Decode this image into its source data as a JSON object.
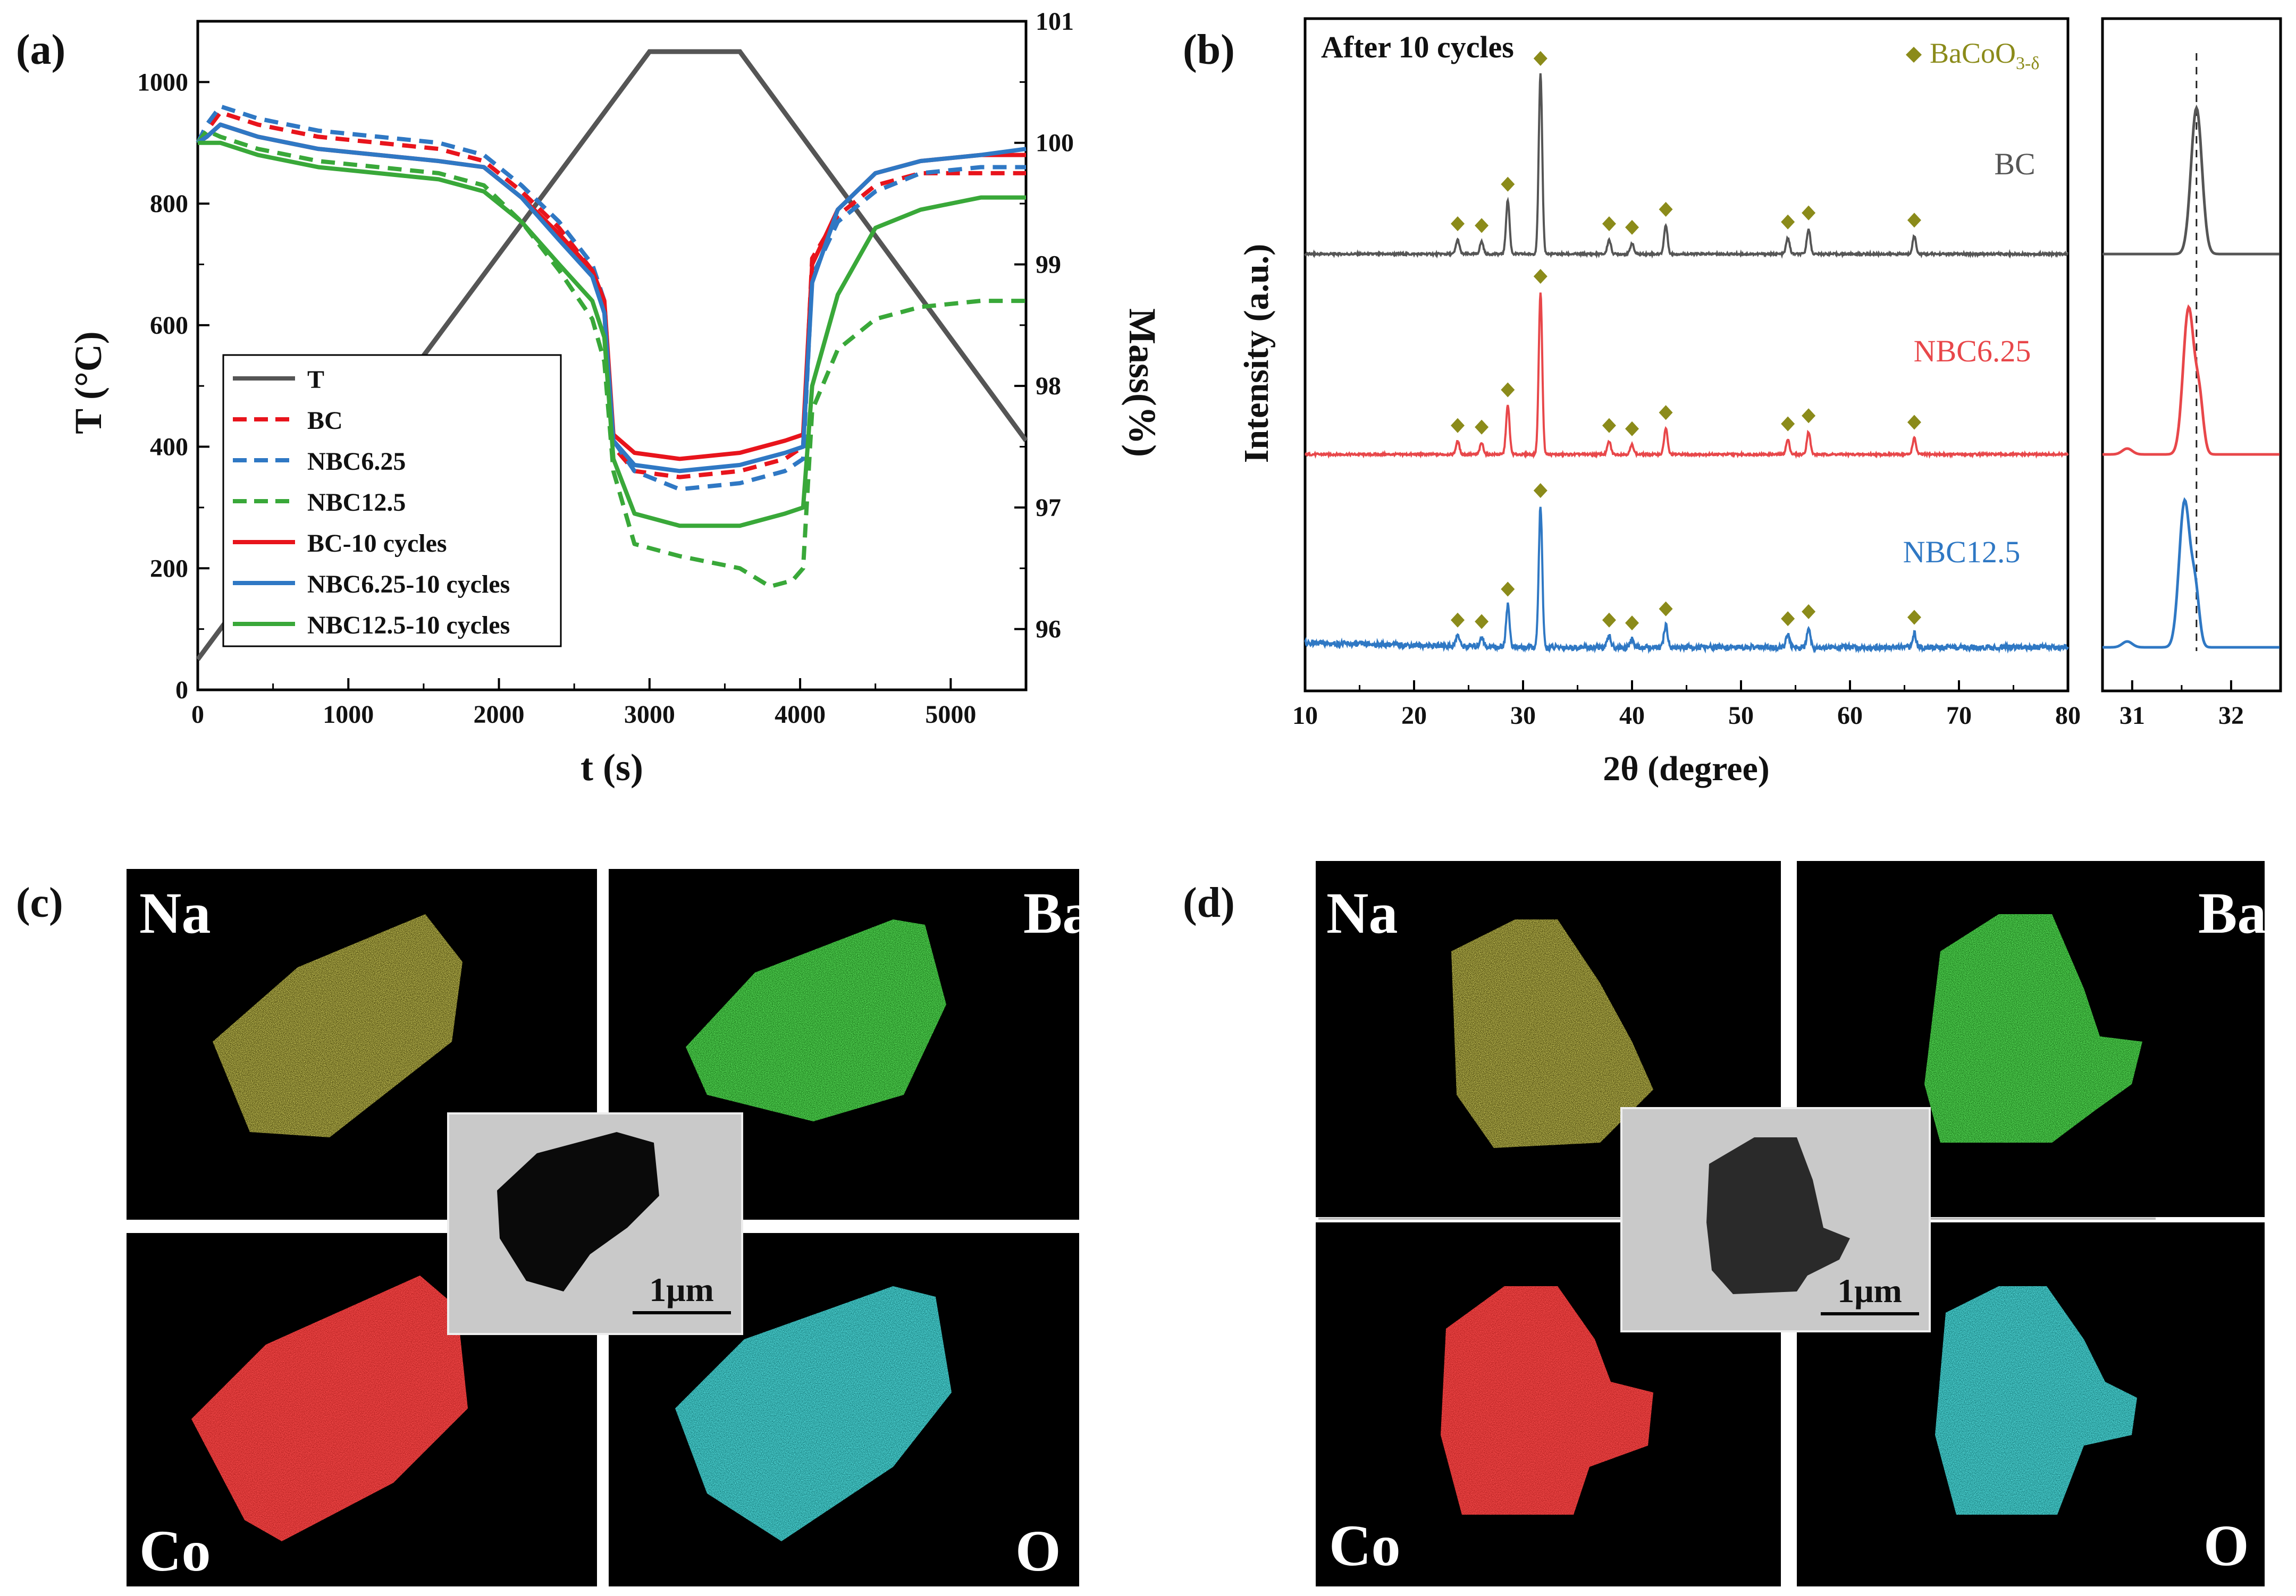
{
  "panel_labels": {
    "a": "(a)",
    "b": "(b)",
    "c": "(c)",
    "d": "(d)"
  },
  "chart_data": [
    {
      "type": "line",
      "panel": "a",
      "xlabel": "t (s)",
      "ylabel_left": "T (°C)",
      "ylabel_right": "Mass(%)",
      "xlim": [
        0,
        5500
      ],
      "ylim_left": [
        0,
        1100
      ],
      "ylim_right": [
        95.5,
        101
      ],
      "xticks": [
        "0",
        "1000",
        "2000",
        "3000",
        "4000",
        "5000"
      ],
      "yticks_left": [
        "0",
        "200",
        "400",
        "600",
        "800",
        "1000"
      ],
      "yticks_right": [
        "96",
        "97",
        "98",
        "99",
        "100",
        "101"
      ],
      "temperature": {
        "name": "T",
        "color": "#555555",
        "x": [
          0,
          3000,
          3600,
          5500
        ],
        "y": [
          50,
          1050,
          1050,
          410
        ]
      },
      "series": [
        {
          "name": "BC",
          "style": "dashed",
          "color": "#e8141c",
          "points": [
            [
              0,
              100.0
            ],
            [
              60,
              100.1
            ],
            [
              150,
              100.25
            ],
            [
              400,
              100.15
            ],
            [
              800,
              100.05
            ],
            [
              1200,
              100.0
            ],
            [
              1600,
              99.95
            ],
            [
              1900,
              99.85
            ],
            [
              2150,
              99.6
            ],
            [
              2400,
              99.3
            ],
            [
              2620,
              98.95
            ],
            [
              2700,
              98.6
            ],
            [
              2760,
              97.5
            ],
            [
              2900,
              97.3
            ],
            [
              3200,
              97.25
            ],
            [
              3600,
              97.3
            ],
            [
              3900,
              97.4
            ],
            [
              4020,
              97.5
            ],
            [
              4080,
              99.05
            ],
            [
              4250,
              99.4
            ],
            [
              4500,
              99.65
            ],
            [
              4800,
              99.75
            ],
            [
              5200,
              99.75
            ],
            [
              5500,
              99.75
            ]
          ]
        },
        {
          "name": "NBC6.25",
          "style": "dashed",
          "color": "#2f78c4",
          "points": [
            [
              0,
              100.0
            ],
            [
              60,
              100.15
            ],
            [
              150,
              100.3
            ],
            [
              400,
              100.2
            ],
            [
              800,
              100.1
            ],
            [
              1200,
              100.05
            ],
            [
              1600,
              100.0
            ],
            [
              1900,
              99.9
            ],
            [
              2150,
              99.65
            ],
            [
              2400,
              99.35
            ],
            [
              2620,
              99.0
            ],
            [
              2700,
              98.7
            ],
            [
              2760,
              97.55
            ],
            [
              2900,
              97.3
            ],
            [
              3200,
              97.15
            ],
            [
              3600,
              97.2
            ],
            [
              3900,
              97.3
            ],
            [
              4020,
              97.4
            ],
            [
              4080,
              98.9
            ],
            [
              4250,
              99.35
            ],
            [
              4500,
              99.6
            ],
            [
              4800,
              99.75
            ],
            [
              5200,
              99.8
            ],
            [
              5500,
              99.8
            ]
          ]
        },
        {
          "name": "NBC12.5",
          "style": "dashed",
          "color": "#39a839",
          "points": [
            [
              0,
              100.0
            ],
            [
              60,
              100.1
            ],
            [
              150,
              100.05
            ],
            [
              400,
              99.95
            ],
            [
              800,
              99.85
            ],
            [
              1200,
              99.8
            ],
            [
              1600,
              99.75
            ],
            [
              1900,
              99.65
            ],
            [
              2150,
              99.35
            ],
            [
              2400,
              98.95
            ],
            [
              2620,
              98.55
            ],
            [
              2700,
              98.2
            ],
            [
              2760,
              97.3
            ],
            [
              2900,
              96.7
            ],
            [
              3200,
              96.6
            ],
            [
              3600,
              96.5
            ],
            [
              3800,
              96.35
            ],
            [
              3950,
              96.4
            ],
            [
              4020,
              96.5
            ],
            [
              4080,
              97.8
            ],
            [
              4250,
              98.3
            ],
            [
              4500,
              98.55
            ],
            [
              4800,
              98.65
            ],
            [
              5200,
              98.7
            ],
            [
              5500,
              98.7
            ]
          ]
        },
        {
          "name": "BC-10 cycles",
          "style": "solid",
          "color": "#e8141c",
          "points": [
            [
              0,
              100.0
            ],
            [
              60,
              100.05
            ],
            [
              150,
              100.15
            ],
            [
              400,
              100.05
            ],
            [
              800,
              99.95
            ],
            [
              1200,
              99.9
            ],
            [
              1600,
              99.85
            ],
            [
              1900,
              99.8
            ],
            [
              2150,
              99.55
            ],
            [
              2400,
              99.25
            ],
            [
              2620,
              98.95
            ],
            [
              2700,
              98.7
            ],
            [
              2760,
              97.6
            ],
            [
              2900,
              97.45
            ],
            [
              3200,
              97.4
            ],
            [
              3600,
              97.45
            ],
            [
              3900,
              97.55
            ],
            [
              4020,
              97.6
            ],
            [
              4080,
              99.0
            ],
            [
              4250,
              99.45
            ],
            [
              4500,
              99.75
            ],
            [
              4800,
              99.85
            ],
            [
              5200,
              99.9
            ],
            [
              5500,
              99.9
            ]
          ]
        },
        {
          "name": "NBC6.25-10 cycles",
          "style": "solid",
          "color": "#2f78c4",
          "points": [
            [
              0,
              100.0
            ],
            [
              60,
              100.05
            ],
            [
              150,
              100.15
            ],
            [
              400,
              100.05
            ],
            [
              800,
              99.95
            ],
            [
              1200,
              99.9
            ],
            [
              1600,
              99.85
            ],
            [
              1900,
              99.8
            ],
            [
              2150,
              99.55
            ],
            [
              2400,
              99.2
            ],
            [
              2620,
              98.9
            ],
            [
              2700,
              98.6
            ],
            [
              2760,
              97.55
            ],
            [
              2900,
              97.35
            ],
            [
              3200,
              97.3
            ],
            [
              3600,
              97.35
            ],
            [
              3900,
              97.45
            ],
            [
              4020,
              97.5
            ],
            [
              4080,
              98.85
            ],
            [
              4250,
              99.45
            ],
            [
              4500,
              99.75
            ],
            [
              4800,
              99.85
            ],
            [
              5200,
              99.9
            ],
            [
              5500,
              99.95
            ]
          ]
        },
        {
          "name": "NBC12.5-10 cycles",
          "style": "solid",
          "color": "#39a839",
          "points": [
            [
              0,
              100.0
            ],
            [
              60,
              100.0
            ],
            [
              150,
              100.0
            ],
            [
              400,
              99.9
            ],
            [
              800,
              99.8
            ],
            [
              1200,
              99.75
            ],
            [
              1600,
              99.7
            ],
            [
              1900,
              99.6
            ],
            [
              2150,
              99.35
            ],
            [
              2400,
              99.0
            ],
            [
              2620,
              98.7
            ],
            [
              2700,
              98.4
            ],
            [
              2760,
              97.4
            ],
            [
              2900,
              96.95
            ],
            [
              3200,
              96.85
            ],
            [
              3600,
              96.85
            ],
            [
              3900,
              96.95
            ],
            [
              4020,
              97.0
            ],
            [
              4080,
              98.0
            ],
            [
              4250,
              98.75
            ],
            [
              4500,
              99.3
            ],
            [
              4800,
              99.45
            ],
            [
              5200,
              99.55
            ],
            [
              5500,
              99.55
            ]
          ]
        }
      ]
    },
    {
      "type": "line",
      "panel": "b",
      "title": "After 10 cycles",
      "legend_label": "BaCoO",
      "legend_sub": "3-δ",
      "xlabel": "2θ (degree)",
      "ylabel": "Intensity (a.u.)",
      "xlim": [
        10,
        80
      ],
      "xticks": [
        "10",
        "20",
        "30",
        "40",
        "50",
        "60",
        "70",
        "80"
      ],
      "marker_color": "#8b8b1a",
      "peak_positions": [
        24.0,
        26.2,
        28.6,
        31.6,
        37.9,
        40.0,
        43.1,
        54.3,
        56.2,
        65.9
      ],
      "peak_heights": [
        0.08,
        0.07,
        0.3,
        1.0,
        0.08,
        0.06,
        0.16,
        0.09,
        0.14,
        0.1
      ],
      "series": [
        {
          "name": "BC",
          "color": "#555555"
        },
        {
          "name": "NBC6.25",
          "color": "#e8474a"
        },
        {
          "name": "NBC12.5",
          "color": "#2f78c4"
        }
      ],
      "inset": {
        "xlim": [
          30.7,
          32.5
        ],
        "xticks": [
          "31",
          "32"
        ],
        "reference_line": 31.65,
        "peak_centers": [
          31.65,
          31.57,
          31.53
        ]
      }
    }
  ],
  "maps_c": {
    "na": "Na",
    "ba": "Ba",
    "co": "Co",
    "o": "O",
    "scale": "1μm"
  },
  "maps_d": {
    "na": "Na",
    "ba": "Ba",
    "co": "Co",
    "o": "O",
    "scale": "1μm"
  },
  "colors": {
    "na": "#d8cf2a",
    "ba": "#22dd22",
    "co": "#ee1111",
    "o": "#1bd5d5"
  }
}
